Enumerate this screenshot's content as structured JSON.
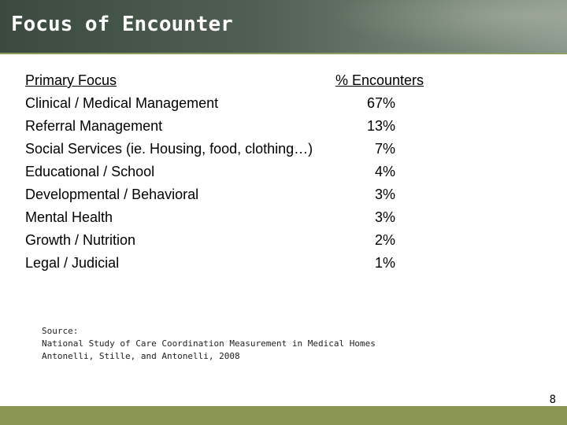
{
  "slide": {
    "title": "Focus of Encounter",
    "page_number": "8"
  },
  "table": {
    "header": {
      "label": "Primary Focus",
      "value": "% Encounters"
    },
    "rows": [
      {
        "label": "Clinical / Medical Management",
        "value": "67%"
      },
      {
        "label": "Referral Management",
        "value": "13%"
      },
      {
        "label": "Social Services (ie. Housing, food, clothing…)",
        "value": "7%"
      },
      {
        "label": "Educational / School",
        "value": "4%"
      },
      {
        "label": "Developmental / Behavioral",
        "value": "3%"
      },
      {
        "label": "Mental Health",
        "value": "3%"
      },
      {
        "label": "Growth / Nutrition",
        "value": "2%"
      },
      {
        "label": "Legal / Judicial",
        "value": "1%"
      }
    ]
  },
  "source": {
    "heading": "Source:",
    "line1": "National Study of Care Coordination Measurement in Medical Homes",
    "line2": "Antonelli, Stille, and Antonelli, 2008"
  },
  "colors": {
    "header_dark": "#3b4a3f",
    "accent_olive": "#8b9553"
  }
}
